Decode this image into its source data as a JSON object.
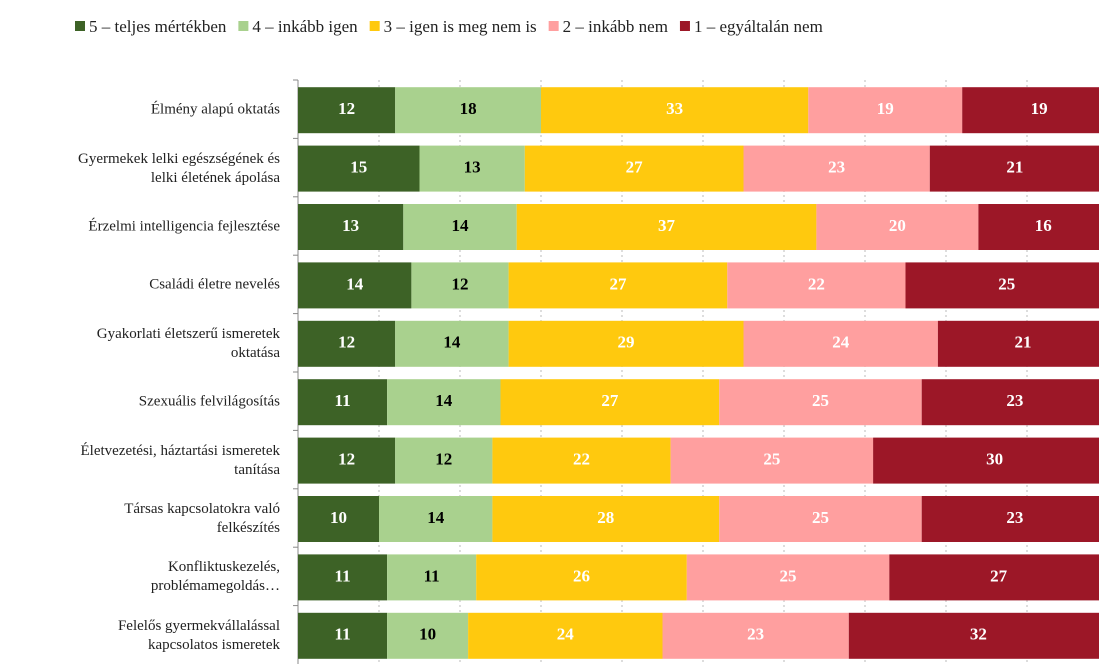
{
  "chart_data": {
    "type": "stacked_barh",
    "categories": [
      "Élmény alapú oktatás",
      "Gyermekek lelki egészségének és\nlelki életének ápolása",
      "Érzelmi intelligencia fejlesztése",
      "Családi életre nevelés",
      "Gyakorlati életszerű ismeretek\noktatása",
      "Szexuális felvilágosítás",
      "Életvezetési, háztartási ismeretek\ntanítása",
      "Társas kapcsolatokra való\nfelkészítés",
      "Konfliktuskezelés,\nproblémamegoldás…",
      "Felelős gyermekvállalással\nkapcsolatos ismeretek"
    ],
    "series": [
      {
        "name": "5 – teljes mértékben",
        "color": "#3d6226",
        "label_color": "#ffffff",
        "values": [
          12,
          15,
          13,
          14,
          12,
          11,
          12,
          10,
          11,
          11
        ]
      },
      {
        "name": "4 – inkább igen",
        "color": "#a9d18e",
        "label_color": "#000000",
        "values": [
          18,
          13,
          14,
          12,
          14,
          14,
          12,
          14,
          11,
          10
        ]
      },
      {
        "name": "3 – igen is meg nem is",
        "color": "#ffc90e",
        "label_color": "#ffffff",
        "values": [
          33,
          27,
          37,
          27,
          29,
          27,
          22,
          28,
          26,
          24
        ]
      },
      {
        "name": "2 – inkább nem",
        "color": "#ff9f9f",
        "label_color": "#ffffff",
        "values": [
          19,
          23,
          20,
          22,
          24,
          25,
          25,
          25,
          25,
          23
        ]
      },
      {
        "name": "1 – egyáltalán nem",
        "color": "#9c1727",
        "label_color": "#ffffff",
        "values": [
          19,
          21,
          16,
          25,
          21,
          23,
          30,
          23,
          27,
          32
        ]
      }
    ],
    "xlim": [
      0,
      100
    ],
    "xticks": [
      0,
      10,
      20,
      30,
      40,
      50,
      60,
      70,
      80,
      90,
      100
    ],
    "grid": true,
    "legend": "top"
  }
}
